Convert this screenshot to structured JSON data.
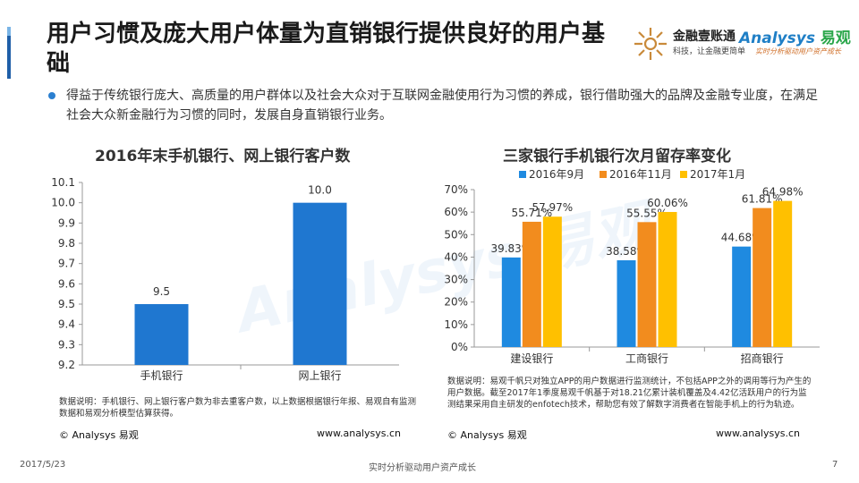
{
  "header": {
    "title": "用户习惯及庞大用户体量为直销银行提供良好的用户基础",
    "logo_jrys": {
      "name": "金融壹账通",
      "tagline": "科技，让金融更简单"
    },
    "logo_analysys": {
      "name": "Analysys",
      "name_cn": "易观",
      "tagline": "实时分析驱动用户资产成长"
    }
  },
  "bullet": "得益于传统银行庞大、高质量的用户群体以及社会大众对于互联网金融使用行为习惯的养成，银行借助强大的品牌及金融专业度，在满足社会大众新金融行为习惯的同时，发展自身直销银行业务。",
  "left_panel": {
    "note": "数据说明：手机银行、网上银行客户数为非去重客户数，以上数据根据银行年报、易观自有监测数据和易观分析模型估算获得。",
    "copyright": "© Analysys 易观",
    "url": "www.analysys.cn"
  },
  "right_panel": {
    "note": "数据说明：易观千帆只对独立APP的用户数据进行监测统计，不包括APP之外的调用等行为产生的用户数据。截至2017年1季度易观千帆基于对18.21亿累计装机覆盖及4.42亿活跃用户的行为监测结果采用自主研发的enfotech技术，帮助您有效了解数字消费者在智能手机上的行为轨迹。",
    "copyright": "© Analysys 易观",
    "url": "www.analysys.cn"
  },
  "footer": {
    "date": "2017/5/23",
    "slogan": "实时分析驱动用户资产成长",
    "page": "7"
  },
  "chart_data": [
    {
      "type": "bar",
      "title": "2016年末手机银行、网上银行客户数",
      "categories": [
        "手机银行",
        "网上银行"
      ],
      "values": [
        9.5,
        10.0
      ],
      "value_labels": [
        "9.5",
        "10.0"
      ],
      "ylim": [
        9.2,
        10.1
      ],
      "yticks": [
        9.2,
        9.3,
        9.4,
        9.5,
        9.6,
        9.7,
        9.8,
        9.9,
        10.0,
        10.1
      ],
      "ytick_labels": [
        "9.2",
        "9.3",
        "9.4",
        "9.5",
        "9.6",
        "9.7",
        "9.8",
        "9.9",
        "10.0",
        "10.1"
      ],
      "color": "#1f77d0",
      "grid": false,
      "xlabel": "",
      "ylabel": ""
    },
    {
      "type": "bar",
      "title": "三家银行手机银行次月留存率变化",
      "categories": [
        "建设银行",
        "工商银行",
        "招商银行"
      ],
      "series": [
        {
          "name": "2016年9月",
          "values": [
            39.83,
            38.58,
            44.68
          ],
          "labels": [
            "39.83%",
            "38.58%",
            "44.68%"
          ],
          "color": "#1f8ae0"
        },
        {
          "name": "2016年11月",
          "values": [
            55.71,
            55.55,
            61.81
          ],
          "labels": [
            "55.71%",
            "55.55%",
            "61.81%"
          ],
          "color": "#f28c1e"
        },
        {
          "name": "2017年1月",
          "values": [
            57.97,
            60.06,
            64.98
          ],
          "labels": [
            "57.97%",
            "60.06%",
            "64.98%"
          ],
          "color": "#ffc000"
        }
      ],
      "ylim": [
        0,
        70
      ],
      "yticks": [
        0,
        10,
        20,
        30,
        40,
        50,
        60,
        70
      ],
      "ytick_labels": [
        "0%",
        "10%",
        "20%",
        "30%",
        "40%",
        "50%",
        "60%",
        "70%"
      ],
      "legend": "top",
      "grid": false,
      "xlabel": "",
      "ylabel": ""
    }
  ]
}
